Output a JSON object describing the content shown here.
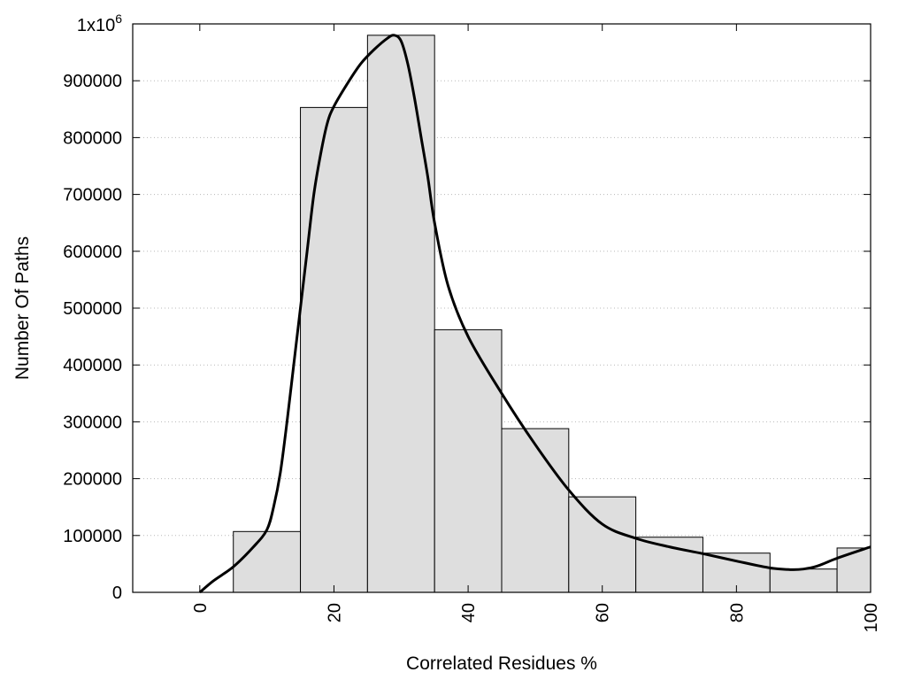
{
  "chart_data": {
    "type": "bar",
    "title": "",
    "xlabel": "Correlated Residues %",
    "ylabel": "Number Of Paths",
    "xlim": [
      -10,
      100
    ],
    "ylim": [
      0,
      1000000
    ],
    "x_ticks": [
      0,
      20,
      40,
      60,
      80,
      100
    ],
    "x_tick_labels": [
      "0",
      "20",
      "40",
      "60",
      "80",
      "100"
    ],
    "y_ticks": [
      0,
      100000,
      200000,
      300000,
      400000,
      500000,
      600000,
      700000,
      800000,
      900000
    ],
    "y_tick_labels": [
      "0",
      "100000",
      "200000",
      "300000",
      "400000",
      "500000",
      "600000",
      "700000",
      "800000",
      "900000"
    ],
    "y_top_label": {
      "base": "1x10",
      "exponent": "6"
    },
    "grid": "horizontal dotted",
    "bar_color": "#dedede",
    "line_color": "#000000",
    "bins": [
      {
        "x0": 5,
        "x1": 15,
        "value": 107000
      },
      {
        "x0": 15,
        "x1": 25,
        "value": 853000
      },
      {
        "x0": 25,
        "x1": 35,
        "value": 980000
      },
      {
        "x0": 35,
        "x1": 45,
        "value": 462000
      },
      {
        "x0": 45,
        "x1": 55,
        "value": 288000
      },
      {
        "x0": 55,
        "x1": 65,
        "value": 168000
      },
      {
        "x0": 65,
        "x1": 75,
        "value": 97000
      },
      {
        "x0": 75,
        "x1": 85,
        "value": 69000
      },
      {
        "x0": 85,
        "x1": 95,
        "value": 41000
      },
      {
        "x0": 95,
        "x1": 100,
        "value": 78000
      }
    ],
    "curve": {
      "x": [
        0,
        2,
        5,
        8,
        10,
        11,
        12,
        13,
        14,
        15,
        16,
        17,
        18,
        19,
        20,
        22,
        24,
        26,
        28,
        29,
        30,
        31,
        32,
        33,
        34,
        35,
        37,
        40,
        45,
        50,
        55,
        60,
        65,
        70,
        75,
        80,
        85,
        88,
        90,
        92,
        95,
        100
      ],
      "y": [
        0,
        20000,
        45000,
        80000,
        110000,
        150000,
        210000,
        300000,
        400000,
        500000,
        600000,
        700000,
        770000,
        825000,
        855000,
        895000,
        930000,
        955000,
        975000,
        980000,
        970000,
        930000,
        870000,
        800000,
        730000,
        650000,
        540000,
        450000,
        350000,
        260000,
        180000,
        120000,
        95000,
        80000,
        68000,
        55000,
        43000,
        40000,
        41000,
        46000,
        60000,
        80000
      ]
    }
  }
}
